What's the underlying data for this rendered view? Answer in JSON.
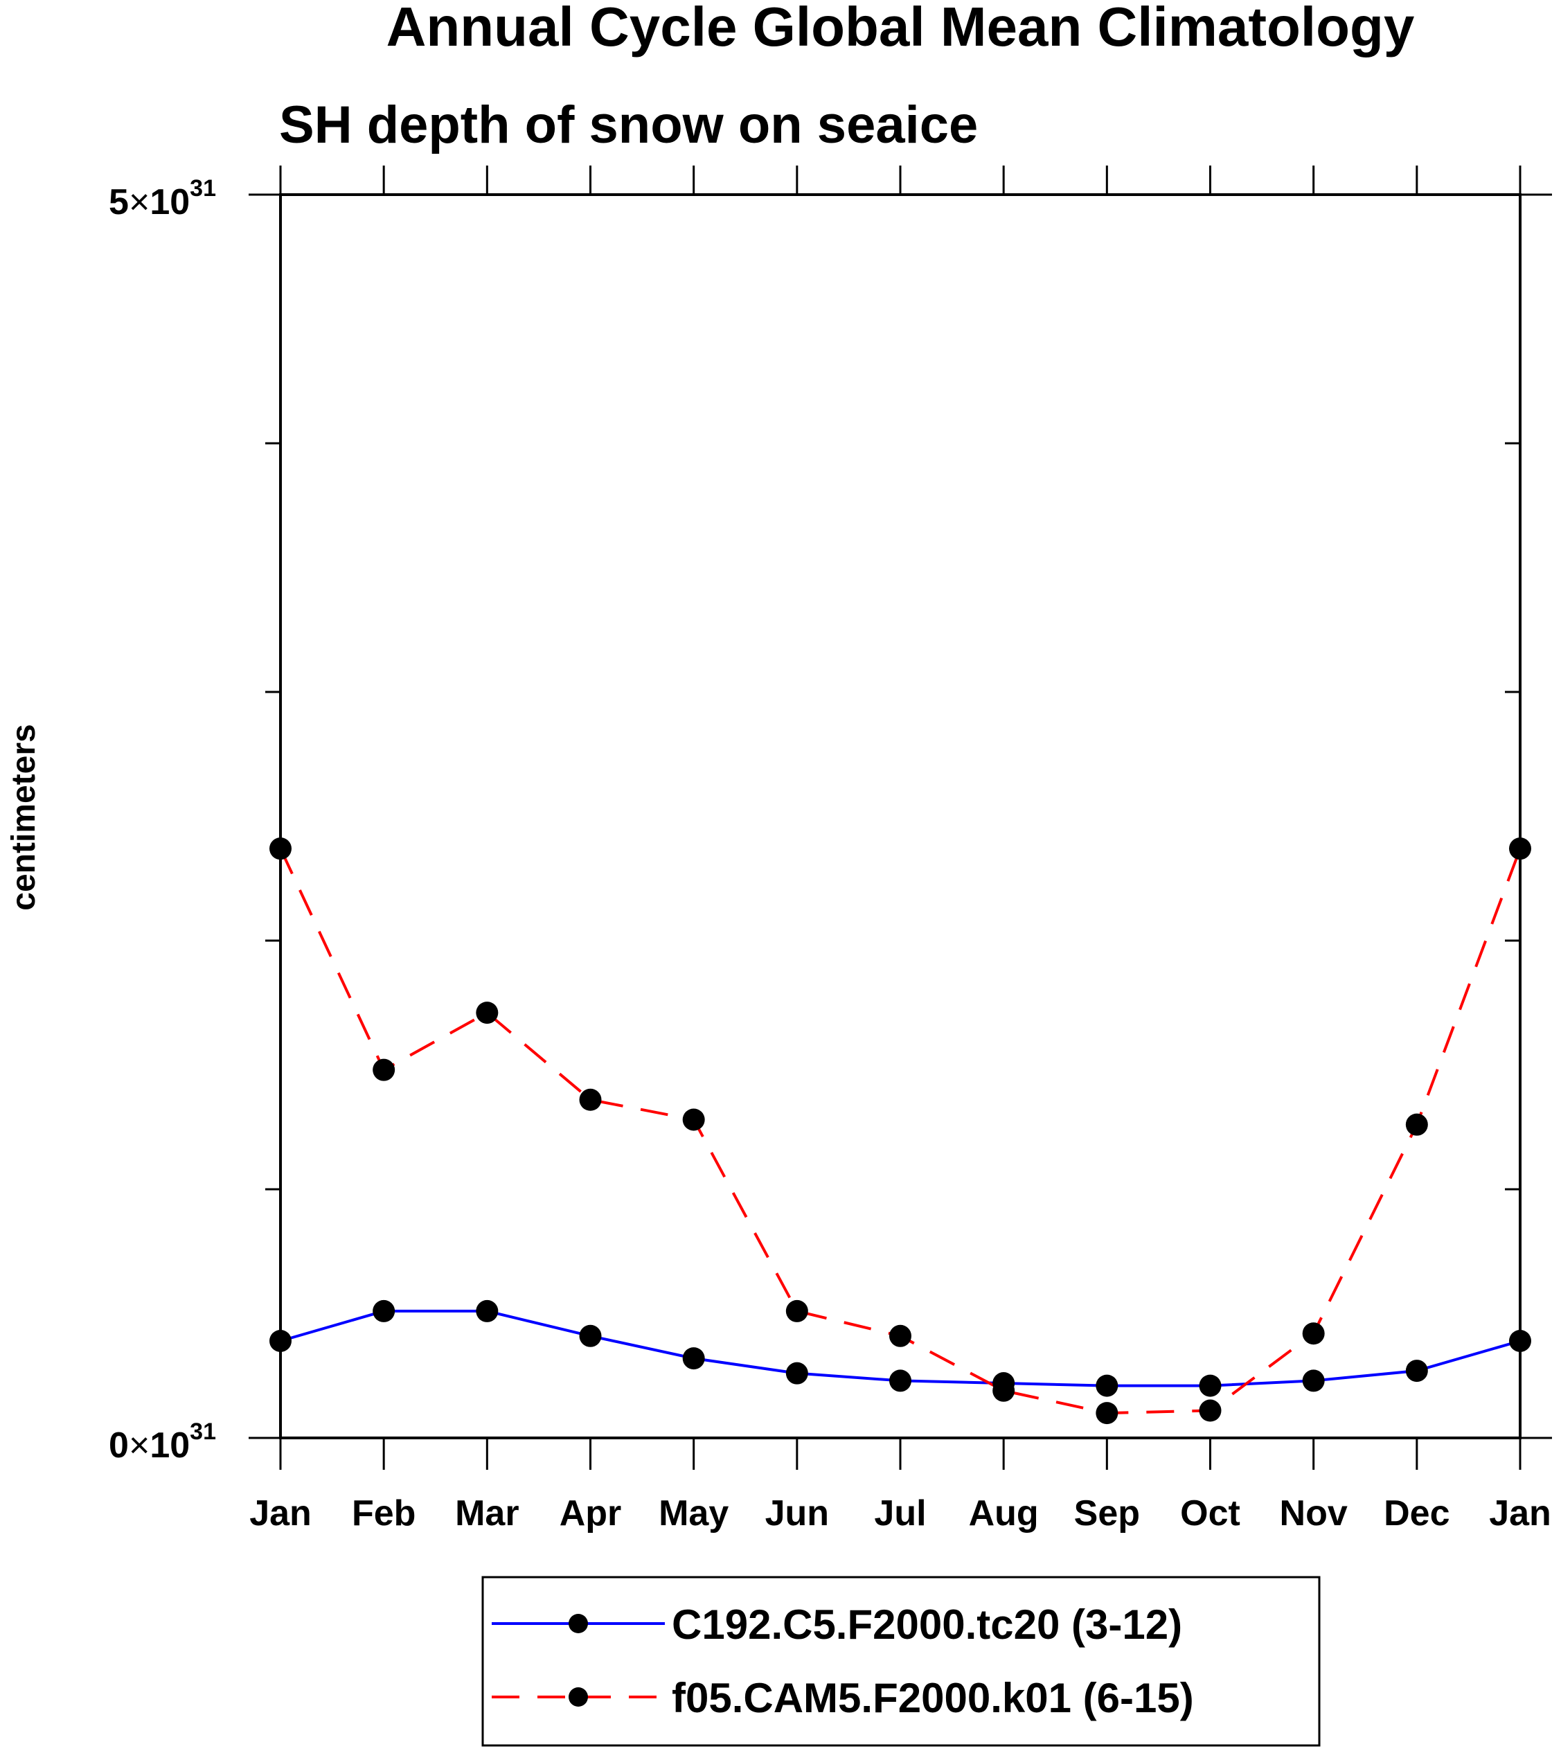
{
  "chart_data": {
    "type": "line",
    "title": "Annual Cycle Global Mean Climatology",
    "subtitle": "SH depth of snow on seaice",
    "ylabel": "centimeters",
    "xlabel": "",
    "categories": [
      "Jan",
      "Feb",
      "Mar",
      "Apr",
      "May",
      "Jun",
      "Jul",
      "Aug",
      "Sep",
      "Oct",
      "Nov",
      "Dec",
      "Jan"
    ],
    "ylim": [
      0,
      5
    ],
    "y_scale_base": "10",
    "y_scale_exp": "31",
    "y_tick_labels": [
      {
        "value": 0,
        "mantissa": "0",
        "times": "×",
        "base": "10",
        "exp": "31"
      },
      {
        "value": 5,
        "mantissa": "5",
        "times": "×",
        "base": "10",
        "exp": "31"
      }
    ],
    "y_minor_ticks": [
      1,
      2,
      3,
      4
    ],
    "series": [
      {
        "name": "C192.C5.F2000.tc20 (3-12)",
        "color": "#0000ff",
        "dash": "solid",
        "marker": "filled-circle",
        "values": [
          0.39,
          0.51,
          0.51,
          0.41,
          0.32,
          0.26,
          0.23,
          0.22,
          0.21,
          0.21,
          0.23,
          0.27,
          0.39
        ]
      },
      {
        "name": "f05.CAM5.F2000.k01 (6-15)",
        "color": "#ff0000",
        "dash": "dashed",
        "marker": "filled-circle",
        "values": [
          2.37,
          1.48,
          1.71,
          1.36,
          1.28,
          0.51,
          0.41,
          0.19,
          0.1,
          0.11,
          0.42,
          1.26,
          2.37
        ]
      }
    ],
    "legend": "bottom-center"
  }
}
